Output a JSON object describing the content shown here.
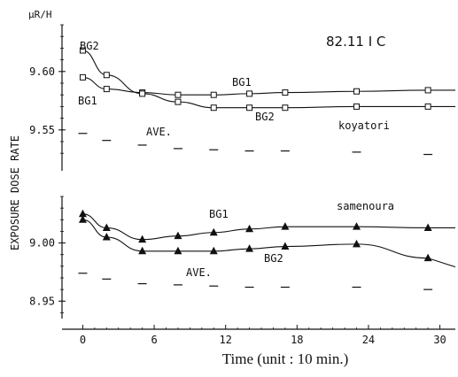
{
  "figure": {
    "unit_label": "μR/H",
    "title": "82.11  I C",
    "ylabel": "EXPOSURE DOSE RATE",
    "xlabel": "Time (unit : 10 min.)"
  },
  "chart_data": [
    {
      "type": "line",
      "station": "koyatori",
      "ylim": [
        9.515,
        9.64
      ],
      "yticks": [
        9.55,
        9.6
      ],
      "ytick_labels": [
        "9.55",
        "9.60"
      ],
      "marker": "open-square",
      "series": [
        {
          "name": "BG1",
          "x": [
            0,
            2,
            5,
            8,
            11,
            14,
            17,
            23,
            29
          ],
          "y": [
            9.595,
            9.585,
            9.582,
            9.58,
            9.58,
            9.581,
            9.582,
            9.583,
            9.584
          ]
        },
        {
          "name": "BG2",
          "x": [
            0,
            2,
            5,
            8,
            11,
            14,
            17,
            23,
            29
          ],
          "y": [
            9.618,
            9.597,
            9.581,
            9.574,
            9.569,
            9.569,
            9.569,
            9.57,
            9.57
          ]
        },
        {
          "name": "AVE.",
          "x": [
            0,
            2,
            5,
            8,
            11,
            14,
            17,
            23,
            29
          ],
          "y": [
            9.547,
            9.541,
            9.537,
            9.534,
            9.533,
            9.532,
            9.532,
            9.531,
            9.529
          ],
          "style": "dash"
        }
      ]
    },
    {
      "type": "line",
      "station": "samenoura",
      "ylim": [
        8.935,
        9.04
      ],
      "yticks": [
        8.95,
        9.0
      ],
      "ytick_labels": [
        "8.95",
        "9.00"
      ],
      "marker": "filled-triangle",
      "series": [
        {
          "name": "BG1",
          "x": [
            0,
            2,
            5,
            8,
            11,
            14,
            17,
            23,
            29
          ],
          "y": [
            9.025,
            9.013,
            9.003,
            9.006,
            9.009,
            9.012,
            9.014,
            9.014,
            9.013
          ]
        },
        {
          "name": "BG2",
          "x": [
            0,
            2,
            5,
            8,
            11,
            14,
            17,
            23,
            29
          ],
          "y": [
            9.02,
            9.005,
            8.993,
            8.993,
            8.993,
            8.995,
            8.997,
            8.999,
            8.987
          ]
        },
        {
          "name": "AVE.",
          "x": [
            0,
            2,
            5,
            8,
            11,
            14,
            17,
            23,
            29
          ],
          "y": [
            8.974,
            8.969,
            8.965,
            8.964,
            8.963,
            8.962,
            8.962,
            8.962,
            8.96
          ],
          "style": "dash"
        }
      ]
    }
  ],
  "x_axis": {
    "xlim": [
      -1,
      31
    ],
    "ticks": [
      0,
      6,
      12,
      18,
      24,
      30
    ],
    "tick_labels": [
      "0",
      "6",
      "12",
      "18",
      "24",
      "30"
    ]
  }
}
